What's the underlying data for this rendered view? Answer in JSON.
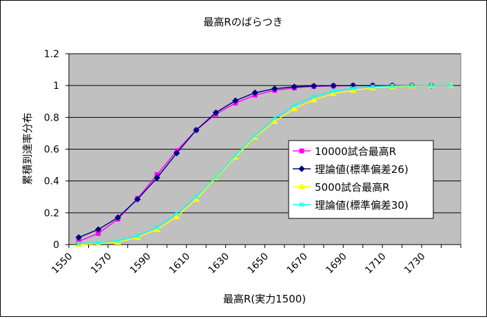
{
  "chart_data": {
    "type": "line",
    "title": "最高Rのばらつき",
    "xlabel": "最高R(実力1500)",
    "ylabel": "累積到達率分布",
    "xlim": [
      1550,
      1750
    ],
    "ylim": [
      0,
      1.2
    ],
    "x_ticks": [
      "1550",
      "1570",
      "1590",
      "1610",
      "1630",
      "1650",
      "1670",
      "1690",
      "1710",
      "1730"
    ],
    "y_ticks": [
      "0",
      "0.2",
      "0.4",
      "0.6",
      "0.8",
      "1",
      "1.2"
    ],
    "grid": "horizontal",
    "legend_position": "right-middle",
    "series": [
      {
        "name": "10000試合最高R",
        "color": "#ff00ff",
        "marker": "square",
        "x": [
          1555,
          1565,
          1575,
          1585,
          1595,
          1605,
          1615,
          1625,
          1635,
          1645,
          1655,
          1665,
          1675,
          1685,
          1695,
          1705,
          1715,
          1725,
          1735
        ],
        "values": [
          0.02,
          0.07,
          0.16,
          0.29,
          0.44,
          0.59,
          0.72,
          0.82,
          0.89,
          0.94,
          0.97,
          0.985,
          0.995,
          0.998,
          1.0,
          1.0,
          1.0,
          1.0,
          1.0
        ]
      },
      {
        "name": "理論値(標準偏差26)",
        "color": "#000080",
        "marker": "diamond",
        "x": [
          1555,
          1565,
          1575,
          1585,
          1595,
          1605,
          1615,
          1625,
          1635,
          1645,
          1655,
          1665,
          1675,
          1685,
          1695,
          1705,
          1715,
          1725,
          1735
        ],
        "values": [
          0.045,
          0.095,
          0.17,
          0.285,
          0.42,
          0.575,
          0.72,
          0.83,
          0.905,
          0.955,
          0.98,
          0.992,
          0.997,
          0.999,
          1.0,
          1.0,
          1.0,
          1.0,
          1.0
        ]
      },
      {
        "name": "5000試合最高R",
        "color": "#ffff00",
        "marker": "triangle",
        "x": [
          1555,
          1565,
          1575,
          1585,
          1595,
          1605,
          1615,
          1625,
          1635,
          1645,
          1655,
          1665,
          1675,
          1685,
          1695,
          1705,
          1715,
          1725,
          1735,
          1745
        ],
        "values": [
          0.0,
          0.005,
          0.015,
          0.045,
          0.095,
          0.175,
          0.285,
          0.42,
          0.55,
          0.675,
          0.775,
          0.855,
          0.91,
          0.95,
          0.97,
          0.985,
          0.993,
          0.997,
          0.999,
          1.0
        ]
      },
      {
        "name": "理論値(標準偏差30)",
        "color": "#00ffff",
        "marker": "x",
        "x": [
          1555,
          1565,
          1575,
          1585,
          1595,
          1605,
          1615,
          1625,
          1635,
          1645,
          1655,
          1665,
          1675,
          1685,
          1695,
          1705,
          1715,
          1725,
          1735,
          1745
        ],
        "values": [
          0.005,
          0.012,
          0.025,
          0.055,
          0.11,
          0.195,
          0.3,
          0.425,
          0.56,
          0.685,
          0.795,
          0.875,
          0.93,
          0.965,
          0.983,
          0.993,
          0.997,
          0.999,
          1.0,
          1.0
        ]
      }
    ]
  }
}
